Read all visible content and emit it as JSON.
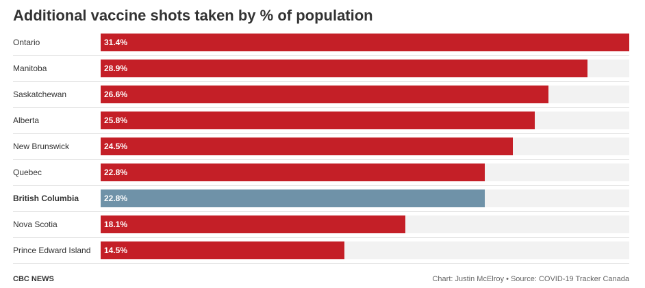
{
  "chart_data": {
    "type": "bar",
    "orientation": "horizontal",
    "title": "Additional vaccine shots taken by % of population",
    "xlabel": "",
    "ylabel": "",
    "xlim": [
      0,
      31.4
    ],
    "grid": false,
    "categories": [
      "Ontario",
      "Manitoba",
      "Saskatchewan",
      "Alberta",
      "New Brunswick",
      "Quebec",
      "British Columbia",
      "Nova Scotia",
      "Prince Edward Island"
    ],
    "values": [
      31.4,
      28.9,
      26.6,
      25.8,
      24.5,
      22.8,
      22.8,
      18.1,
      14.5
    ],
    "value_labels": [
      "31.4%",
      "28.9%",
      "26.6%",
      "25.8%",
      "24.5%",
      "22.8%",
      "22.8%",
      "18.1%",
      "14.5%"
    ],
    "highlighted": [
      "British Columbia"
    ],
    "colors": {
      "default_bar": "#c41f27",
      "highlight_bar": "#6f92a8",
      "track": "#f2f2f2"
    }
  },
  "footer": {
    "brand": "CBC NEWS",
    "credit": "Chart: Justin McElroy • Source: COVID-19 Tracker Canada"
  }
}
